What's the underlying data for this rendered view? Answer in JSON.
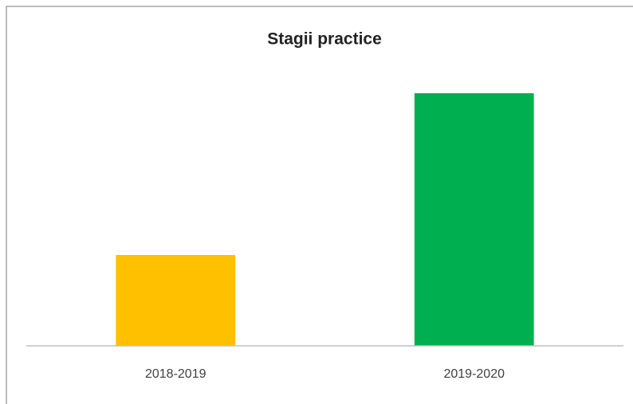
{
  "chart_data": {
    "type": "bar",
    "title": "Stagii practice",
    "categories": [
      "2018-2019",
      "2019-2020"
    ],
    "values": [
      114,
      317
    ],
    "colors": [
      "#ffc000",
      "#00b050"
    ],
    "ylim": [
      0,
      350
    ]
  }
}
